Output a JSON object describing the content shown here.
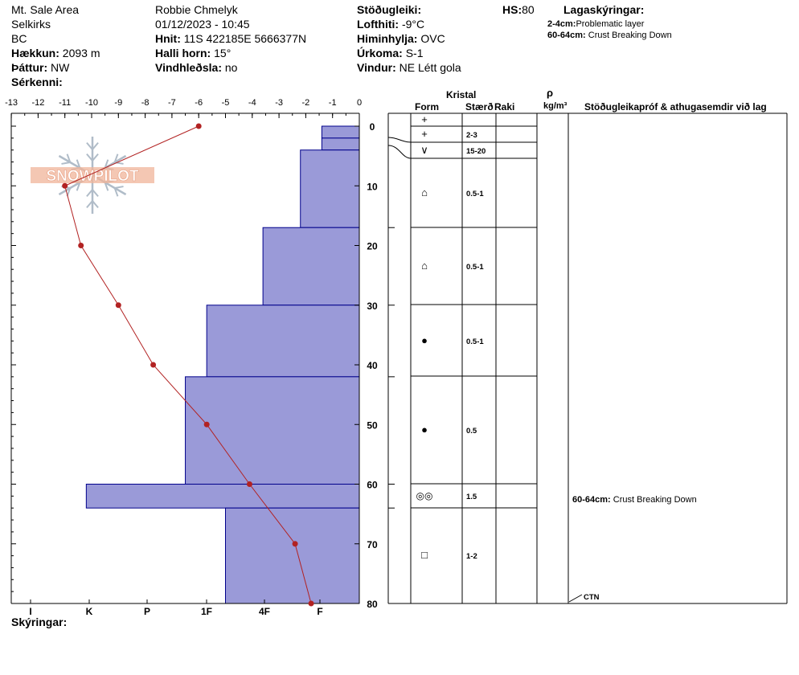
{
  "header": {
    "location": "Mt. Sale Area",
    "range": "Selkirks",
    "region": "BC",
    "elevation_label": "Hækkun:",
    "elevation_value": "2093 m",
    "aspect_label": "Þáttur:",
    "aspect_value": "NW",
    "specifics_label": "Sérkenni:",
    "observer": "Robbie Chmelyk",
    "datetime": "01/12/2023 - 10:45",
    "coords_label": "Hnit:",
    "coords_value": "11S 422185E 5666377N",
    "slope_label": "Halli horn:",
    "slope_value": "15°",
    "wind_loading_label": "Vindhleðsla:",
    "wind_loading_value": "no",
    "stability_label": "Stöðugleiki:",
    "air_temp_label": "Lofthiti:",
    "air_temp_value": "-9°C",
    "sky_label": "Himinhylja:",
    "sky_value": "OVC",
    "precip_label": "Úrkoma:",
    "precip_value": "S-1",
    "wind_label": "Vindur:",
    "wind_value": "NE Létt gola",
    "hs_label": "HS:",
    "hs_value": "80",
    "layer_notes_title": "Lagaskýringar:",
    "layer_notes": [
      {
        "depth": "2-4cm:",
        "text": "Problematic layer"
      },
      {
        "depth": "60-64cm:",
        "text": "Crust Breaking Down"
      }
    ],
    "notes_label": "Skýringar:"
  },
  "table": {
    "crystal_header": "Kristal",
    "form_header": "Form",
    "size_header": "Stærð",
    "moisture_header": "Raki",
    "density_symbol": "ρ",
    "density_unit": "kg/m³",
    "comments_header": "Stöðugleikapróf & athugasemdir við lag",
    "comment_layer_depth": "60-64cm:",
    "comment_layer_text": "Crust Breaking Down",
    "ground_label": "CTN"
  },
  "logo_text": "SNOWPILOT",
  "chart_data": {
    "type": "snow-profile",
    "temperature_axis": {
      "ticks": [
        -13,
        -12,
        -11,
        -10,
        -9,
        -8,
        -7,
        -6,
        -5,
        -4,
        -3,
        -2,
        -1,
        0
      ],
      "range": [
        -13,
        0
      ]
    },
    "depth_axis": {
      "ticks": [
        0,
        10,
        20,
        30,
        40,
        50,
        60,
        70,
        80
      ],
      "range": [
        0,
        80
      ],
      "unit": "cm"
    },
    "hardness_axis": {
      "ticks": [
        "I",
        "K",
        "P",
        "1F",
        "4F",
        "F"
      ]
    },
    "temperature_profile": [
      {
        "depth": 0,
        "temp": -6.0
      },
      {
        "depth": 10,
        "temp": -11.0
      },
      {
        "depth": 20,
        "temp": -10.4
      },
      {
        "depth": 30,
        "temp": -9.0
      },
      {
        "depth": 40,
        "temp": -7.7
      },
      {
        "depth": 50,
        "temp": -5.7
      },
      {
        "depth": 60,
        "temp": -4.1
      },
      {
        "depth": 70,
        "temp": -2.4
      },
      {
        "depth": 80,
        "temp": -1.8
      }
    ],
    "hardness_layers": [
      {
        "top": 0,
        "bottom": 2,
        "hardness": "F",
        "temp_scale": -1.4
      },
      {
        "top": 2,
        "bottom": 4,
        "hardness": "F",
        "temp_scale": -1.4
      },
      {
        "top": 4,
        "bottom": 17,
        "hardness": "F+",
        "temp_scale": -2.2
      },
      {
        "top": 17,
        "bottom": 30,
        "hardness": "4F",
        "temp_scale": -3.6
      },
      {
        "top": 30,
        "bottom": 42,
        "hardness": "1F+",
        "temp_scale": -5.7
      },
      {
        "top": 42,
        "bottom": 60,
        "hardness": "1F-",
        "temp_scale": -6.5
      },
      {
        "top": 60,
        "bottom": 64,
        "hardness": "K",
        "temp_scale": -10.2
      },
      {
        "top": 64,
        "bottom": 80,
        "hardness": "4F-",
        "temp_scale": -5.0
      }
    ],
    "layers": [
      {
        "top": 0,
        "bottom": 2,
        "form": "+",
        "size": ""
      },
      {
        "top": 2,
        "bottom": 4,
        "form": "+",
        "size": "2-3"
      },
      {
        "top": 4,
        "bottom": 17,
        "form": "∨",
        "size": "15-20"
      },
      {
        "top": 17,
        "bottom": 30,
        "form": "⌂",
        "size": "0.5-1"
      },
      {
        "top": 30,
        "bottom": 42,
        "form": "⌂",
        "size": "0.5-1"
      },
      {
        "top": 42,
        "bottom": 60,
        "form": "●",
        "size": "0.5-1"
      },
      {
        "top": 60,
        "bottom": 64,
        "form": "●",
        "size": "0.5"
      },
      {
        "top": 64,
        "bottom": 80,
        "form": "◎◎",
        "size": "1.5"
      }
    ],
    "colors": {
      "hardness_fill": "#9a9ad8",
      "hardness_stroke": "#00008b",
      "temperature_line": "#b22222"
    }
  }
}
